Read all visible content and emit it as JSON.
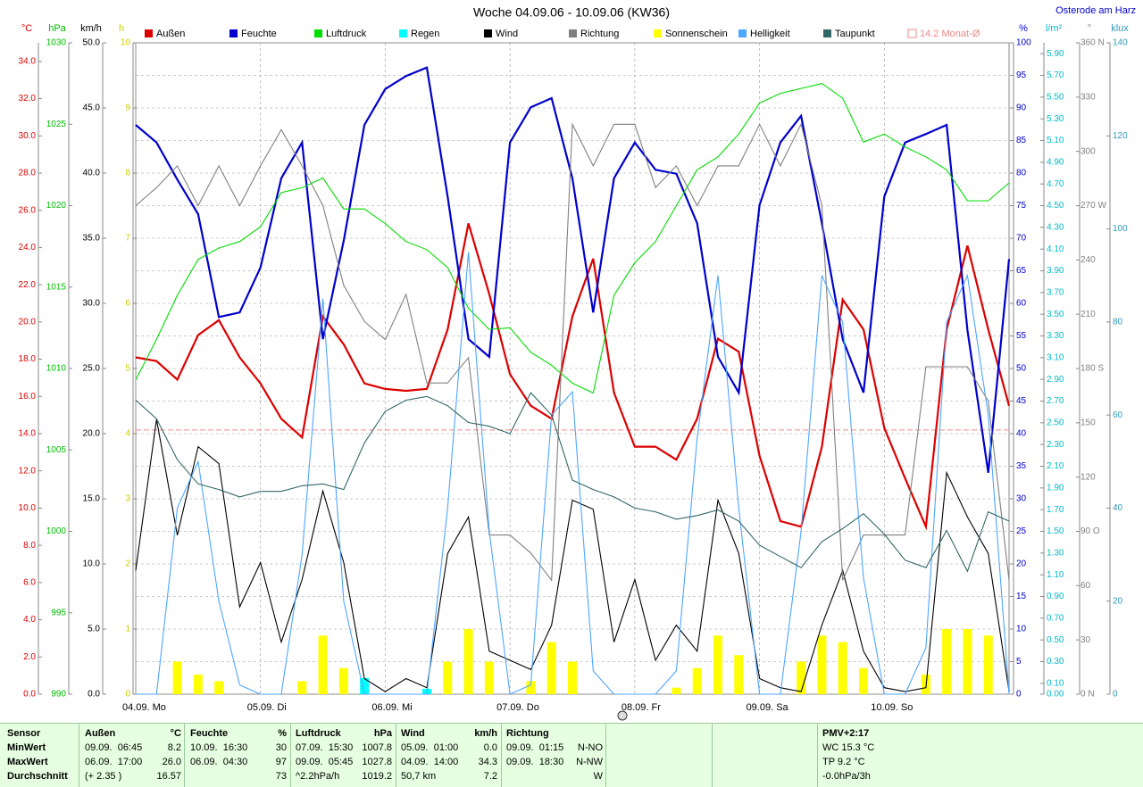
{
  "chart_data": {
    "type": "line",
    "title": "Woche 04.09.06 - 10.09.06 (KW36)",
    "station": "Osterode am Harz",
    "x": [
      0,
      4,
      8,
      12,
      16,
      20,
      24,
      28,
      32,
      36,
      40,
      44,
      48,
      52,
      56,
      60,
      64,
      68,
      72,
      76,
      80,
      84,
      88,
      92,
      96,
      100,
      104,
      108,
      112,
      116,
      120,
      124,
      128,
      132,
      136,
      140,
      144,
      148,
      152,
      156,
      160,
      164,
      168
    ],
    "xlim": [
      0,
      168
    ],
    "xticks": [
      {
        "value": 0,
        "label": "04.09.  Mo"
      },
      {
        "value": 24,
        "label": "05.09.  Di"
      },
      {
        "value": 48,
        "label": "06.09.  Mi"
      },
      {
        "value": 72,
        "label": "07.09.  Do"
      },
      {
        "value": 96,
        "label": "08.09.  Fr"
      },
      {
        "value": 120,
        "label": "09.09.  Sa"
      },
      {
        "value": 144,
        "label": "10.09.  So"
      }
    ],
    "grid": true,
    "axes": [
      {
        "unit": "°C",
        "color": "#dd0000",
        "side": "left",
        "lim": [
          0,
          35
        ],
        "ticks": [
          {
            "value": 0,
            "label": "0.0"
          },
          {
            "value": 2,
            "label": "2.0"
          },
          {
            "value": 4,
            "label": "4.0"
          },
          {
            "value": 6,
            "label": "6.0"
          },
          {
            "value": 8,
            "label": "8.0"
          },
          {
            "value": 10,
            "label": "10.0"
          },
          {
            "value": 12,
            "label": "12.0"
          },
          {
            "value": 14,
            "label": "14.0"
          },
          {
            "value": 16,
            "label": "16.0"
          },
          {
            "value": 18,
            "label": "18.0"
          },
          {
            "value": 20,
            "label": "20.0"
          },
          {
            "value": 22,
            "label": "22.0"
          },
          {
            "value": 24,
            "label": "24.0"
          },
          {
            "value": 26,
            "label": "26.0"
          },
          {
            "value": 28,
            "label": "28.0"
          },
          {
            "value": 30,
            "label": "30.0"
          },
          {
            "value": 32,
            "label": "32.0"
          },
          {
            "value": 34,
            "label": "34.0"
          }
        ]
      },
      {
        "unit": "hPa",
        "color": "#00bb00",
        "side": "left",
        "lim": [
          990,
          1030
        ],
        "ticks": [
          990,
          995,
          1000,
          1005,
          1010,
          1015,
          1020,
          1025,
          1030
        ]
      },
      {
        "unit": "km/h",
        "color": "#000000",
        "side": "left",
        "lim": [
          0,
          50
        ],
        "ticks": [
          {
            "value": 0,
            "label": "0.0"
          },
          {
            "value": 5,
            "label": "5.0"
          },
          {
            "value": 10,
            "label": "10.0"
          },
          {
            "value": 15,
            "label": "15.0"
          },
          {
            "value": 20,
            "label": "20.0"
          },
          {
            "value": 25,
            "label": "25.0"
          },
          {
            "value": 30,
            "label": "30.0"
          },
          {
            "value": 35,
            "label": "35.0"
          },
          {
            "value": 40,
            "label": "40.0"
          },
          {
            "value": 45,
            "label": "45.0"
          },
          {
            "value": 50,
            "label": "50.0"
          }
        ]
      },
      {
        "unit": "h",
        "color": "#cccc00",
        "side": "left",
        "lim": [
          0,
          10
        ],
        "ticks": [
          0,
          1,
          2,
          3,
          4,
          5,
          6,
          7,
          8,
          9,
          10
        ]
      },
      {
        "unit": "%",
        "color": "#0000cc",
        "side": "right",
        "lim": [
          0,
          100
        ],
        "ticks": [
          0,
          5,
          10,
          15,
          20,
          25,
          30,
          35,
          40,
          45,
          50,
          55,
          60,
          65,
          70,
          75,
          80,
          85,
          90,
          95,
          100
        ]
      },
      {
        "unit": "l/m²",
        "color": "#00bbcc",
        "side": "right",
        "lim": [
          0,
          6
        ],
        "ticks": [
          {
            "value": 0,
            "label": "0.00"
          },
          {
            "value": 0.1,
            "label": "0.10"
          },
          {
            "value": 0.3,
            "label": "0.30"
          },
          {
            "value": 0.5,
            "label": "0.50"
          },
          {
            "value": 0.7,
            "label": "0.70"
          },
          {
            "value": 0.9,
            "label": "0.90"
          },
          {
            "value": 1.1,
            "label": "1.10"
          },
          {
            "value": 1.3,
            "label": "1.30"
          },
          {
            "value": 1.5,
            "label": "1.50"
          },
          {
            "value": 1.7,
            "label": "1.70"
          },
          {
            "value": 1.9,
            "label": "1.90"
          },
          {
            "value": 2.1,
            "label": "2.10"
          },
          {
            "value": 2.3,
            "label": "2.30"
          },
          {
            "value": 2.5,
            "label": "2.50"
          },
          {
            "value": 2.7,
            "label": "2.70"
          },
          {
            "value": 2.9,
            "label": "2.90"
          },
          {
            "value": 3.1,
            "label": "3.10"
          },
          {
            "value": 3.3,
            "label": "3.30"
          },
          {
            "value": 3.5,
            "label": "3.50"
          },
          {
            "value": 3.7,
            "label": "3.70"
          },
          {
            "value": 3.9,
            "label": "3.90"
          },
          {
            "value": 4.1,
            "label": "4.10"
          },
          {
            "value": 4.3,
            "label": "4.30"
          },
          {
            "value": 4.5,
            "label": "4.50"
          },
          {
            "value": 4.7,
            "label": "4.70"
          },
          {
            "value": 4.9,
            "label": "4.90"
          },
          {
            "value": 5.1,
            "label": "5.10"
          },
          {
            "value": 5.3,
            "label": "5.30"
          },
          {
            "value": 5.5,
            "label": "5.50"
          },
          {
            "value": 5.7,
            "label": "5.70"
          },
          {
            "value": 5.9,
            "label": "5.90"
          }
        ]
      },
      {
        "unit": "°",
        "color": "#808080",
        "side": "right",
        "lim": [
          0,
          360
        ],
        "ticks": [
          {
            "value": 0,
            "label": "0   N"
          },
          30,
          60,
          {
            "value": 90,
            "label": "90   O"
          },
          120,
          150,
          {
            "value": 180,
            "label": "180   S"
          },
          210,
          240,
          {
            "value": 270,
            "label": "270   W"
          },
          300,
          330,
          {
            "value": 360,
            "label": "360   N"
          }
        ]
      },
      {
        "unit": "klux",
        "color": "#3399bb",
        "side": "right",
        "lim": [
          0,
          140
        ],
        "ticks": [
          0,
          20,
          40,
          60,
          80,
          100,
          120,
          140
        ]
      }
    ],
    "series": [
      {
        "name": "Außen",
        "color": "#dd0000",
        "axis": "°C",
        "style": "line",
        "values": [
          18.1,
          17.9,
          16.9,
          19.3,
          20.1,
          18.1,
          16.7,
          14.8,
          13.8,
          20.3,
          18.8,
          16.7,
          16.4,
          16.3,
          16.4,
          19.6,
          25.3,
          21.5,
          17.2,
          15.5,
          14.8,
          20.3,
          23.4,
          16.2,
          13.3,
          13.3,
          12.6,
          14.8,
          19.1,
          18.4,
          12.8,
          9.3,
          9.0,
          13.3,
          21.2,
          19.6,
          14.3,
          11.6,
          9.0,
          19.6,
          24.1,
          19.6,
          15.5
        ]
      },
      {
        "name": "Feuchte",
        "color": "#0000cc",
        "axis": "%",
        "style": "line",
        "values": [
          87.4,
          84.7,
          79,
          73.7,
          57.9,
          58.6,
          65.5,
          79.2,
          84.7,
          54.5,
          69.6,
          87.4,
          92.9,
          94.9,
          96.2,
          76.4,
          54.5,
          51.8,
          84.7,
          90.1,
          91.5,
          79.2,
          58.6,
          79.2,
          84.7,
          80.5,
          79.9,
          72.3,
          51.8,
          46.3,
          75.1,
          84.7,
          88.8,
          72.3,
          54.5,
          46.3,
          76.4,
          84.7,
          86,
          87.4,
          55.9,
          34,
          66.8
        ]
      },
      {
        "name": "Luftdruck",
        "color": "#00dd00",
        "axis": "hPa",
        "style": "line",
        "values": [
          1009.3,
          1011.8,
          1014.5,
          1016.7,
          1017.4,
          1017.8,
          1018.7,
          1020.8,
          1021.1,
          1021.7,
          1019.8,
          1019.8,
          1018.9,
          1017.8,
          1017.3,
          1016.2,
          1013.7,
          1012.4,
          1012.5,
          1011.0,
          1010.2,
          1009.1,
          1008.5,
          1014.5,
          1016.5,
          1017.8,
          1020.0,
          1022.2,
          1023.0,
          1024.4,
          1026.3,
          1026.9,
          1027.2,
          1027.5,
          1026.6,
          1023.9,
          1024.4,
          1023.6,
          1023.0,
          1022.2,
          1020.3,
          1020.3,
          1021.4
        ]
      },
      {
        "name": "Regen",
        "color": "#00ffff",
        "axis": "l/m²",
        "style": "bar",
        "values": [
          0,
          0,
          0,
          0,
          0,
          0,
          0,
          0,
          0,
          0,
          0,
          0.15,
          0,
          0,
          0.05,
          0,
          0,
          0,
          0,
          0,
          0,
          0,
          0,
          0,
          0,
          0,
          0,
          0,
          0,
          0,
          0,
          0,
          0,
          0,
          0,
          0,
          0,
          0,
          0,
          0,
          0,
          0,
          0
        ]
      },
      {
        "name": "Wind",
        "color": "#000000",
        "axis": "km/h",
        "style": "line",
        "values": [
          9.5,
          21.1,
          12.2,
          19.0,
          17.7,
          6.7,
          10.1,
          4.0,
          8.8,
          15.6,
          10.1,
          1.2,
          0.2,
          1.2,
          0.5,
          10.8,
          13.6,
          3.3,
          2.6,
          1.9,
          5.3,
          14.9,
          14.2,
          4.0,
          8.8,
          2.6,
          5.3,
          3.3,
          14.9,
          10.8,
          1.2,
          0.5,
          0.2,
          5.3,
          9.5,
          3.3,
          0.5,
          0.2,
          0.5,
          17.0,
          13.6,
          10.8,
          0.2
        ]
      },
      {
        "name": "Richtung",
        "color": "#808080",
        "axis": "°",
        "style": "line",
        "values": [
          270,
          280,
          292,
          270,
          292,
          270,
          292,
          312,
          292,
          270,
          226,
          206,
          196,
          221,
          172,
          172,
          186,
          88,
          88,
          78,
          63,
          315,
          292,
          315,
          315,
          280,
          292,
          270,
          292,
          292,
          315,
          292,
          315,
          270,
          63,
          88,
          88,
          88,
          181,
          181,
          181,
          162,
          63
        ]
      },
      {
        "name": "Sonnenschein",
        "color": "#ffff00",
        "axis": "h",
        "style": "bar",
        "values": [
          0,
          0,
          0.5,
          0.3,
          0.2,
          0,
          0,
          0,
          0.2,
          0.9,
          0.4,
          0,
          0,
          0,
          0,
          0.5,
          1.0,
          0.5,
          0,
          0.2,
          0.8,
          0.5,
          0,
          0,
          0,
          0,
          0.1,
          0.4,
          0.9,
          0.6,
          0,
          0,
          0.5,
          0.9,
          0.8,
          0.4,
          0,
          0,
          0.3,
          1.0,
          1.0,
          0.9,
          0
        ]
      },
      {
        "name": "Helligkeit",
        "color": "#4da6ff",
        "axis": "klux",
        "style": "line",
        "values": [
          0,
          0,
          40,
          50,
          20,
          2,
          0,
          0,
          30,
          85,
          20,
          0,
          0,
          0,
          0,
          40,
          95,
          35,
          0,
          2,
          60,
          65,
          5,
          0,
          0,
          0,
          5,
          55,
          90,
          40,
          0,
          0,
          35,
          90,
          80,
          25,
          0,
          0,
          10,
          80,
          90,
          60,
          0
        ]
      },
      {
        "name": "Taupunkt",
        "color": "#336666",
        "axis": "°C",
        "style": "line",
        "values": [
          15.8,
          14.8,
          12.6,
          11.3,
          11.0,
          10.6,
          10.9,
          10.9,
          11.2,
          11.3,
          11.0,
          13.5,
          15.2,
          15.8,
          16.0,
          15.5,
          14.6,
          14.4,
          14.0,
          16.2,
          15.0,
          11.5,
          11.0,
          10.6,
          10.0,
          9.8,
          9.4,
          9.6,
          9.9,
          9.3,
          8.0,
          7.4,
          6.8,
          8.2,
          8.9,
          9.7,
          8.6,
          7.2,
          6.8,
          8.8,
          6.6,
          9.8,
          9.3
        ]
      }
    ],
    "reference": {
      "label": "14.2 Monat-Ø",
      "value": 14.2,
      "axis": "°C",
      "color": "#ee8888"
    }
  },
  "stats": {
    "row_labels": [
      "Sensor",
      "MinWert",
      "MaxWert",
      "Durchschnitt"
    ],
    "sections": [
      {
        "name": "Außen",
        "unit": "°C",
        "rows": [
          {
            "when": "09.09.  06:45",
            "value": "8.2"
          },
          {
            "when": "06.09.  17:00",
            "value": "26.0"
          },
          {
            "when": "(+ 2.35 )",
            "value": "16.57"
          }
        ]
      },
      {
        "name": "Feuchte",
        "unit": "%",
        "rows": [
          {
            "when": "10.09.  16:30",
            "value": "30"
          },
          {
            "when": "06.09.  04:30",
            "value": "97"
          },
          {
            "value": "73"
          }
        ]
      },
      {
        "name": "Luftdruck",
        "unit": "hPa",
        "rows": [
          {
            "when": "07.09.  15:30",
            "value": "1007.8"
          },
          {
            "when": "09.09.  05:45",
            "value": "1027.8"
          },
          {
            "when": "^2.2hPa/h",
            "value": "1019.2"
          }
        ]
      },
      {
        "name": "Wind",
        "unit": "km/h",
        "rows": [
          {
            "when": "05.09.  01:00",
            "value": "0.0"
          },
          {
            "when": "04.09.  14:00",
            "value": "34.3"
          },
          {
            "when": "50,7 km",
            "value": "7.2"
          }
        ]
      },
      {
        "name": "Richtung",
        "rows": [
          {
            "when": "09.09.  01:15",
            "value": "N-NO"
          },
          {
            "when": "09.09.  18:30",
            "value": "N-NW"
          },
          {
            "value": "W"
          }
        ]
      }
    ],
    "notes": [
      "PMV+2:17",
      "WC 15.3 °C",
      "TP 9.2 °C",
      "-0.0hPa/3h"
    ]
  }
}
